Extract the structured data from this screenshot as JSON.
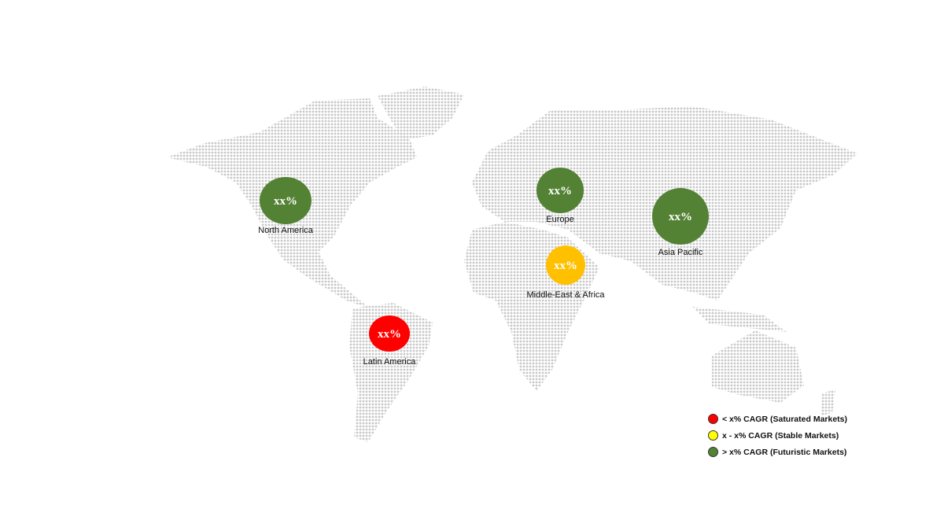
{
  "regions": [
    {
      "name": "North America",
      "value": "xx%",
      "status": "futuristic"
    },
    {
      "name": "Europe",
      "value": "xx%",
      "status": "futuristic"
    },
    {
      "name": "Asia Pacific",
      "value": "xx%",
      "status": "futuristic"
    },
    {
      "name": "Middle-East & Africa",
      "value": "xx%",
      "status": "stable"
    },
    {
      "name": "Latin America",
      "value": "xx%",
      "status": "saturated"
    }
  ],
  "legend": [
    {
      "key": "saturated",
      "label": "< x% CAGR (Saturated Markets)",
      "color": "#ff0000"
    },
    {
      "key": "stable",
      "label": "x - x% CAGR (Stable Markets)",
      "color": "#ffff00"
    },
    {
      "key": "futuristic",
      "label": "> x% CAGR (Futuristic Markets)",
      "color": "#548235"
    }
  ],
  "bubble_colors": {
    "futuristic": "#548235",
    "stable": "#ffc000",
    "saturated": "#ff0000"
  },
  "map_dot_color": "#c8c8c8"
}
